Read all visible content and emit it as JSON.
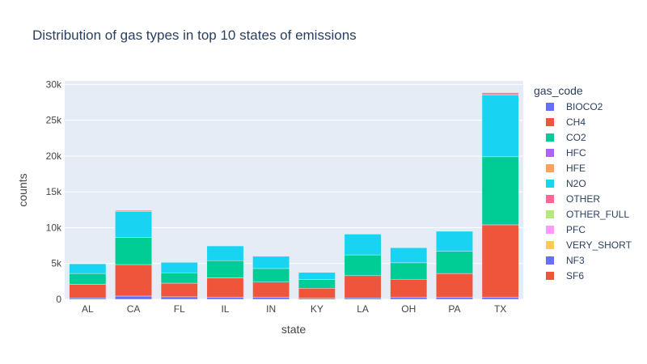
{
  "chart_data": {
    "type": "bar",
    "stacked": true,
    "title": "Distribution of gas types in top 10 states of emissions",
    "xlabel": "state",
    "ylabel": "counts",
    "ylim": [
      0,
      30500
    ],
    "yticks": [
      0,
      5000,
      10000,
      15000,
      20000,
      25000,
      30000
    ],
    "ytick_labels": [
      "0",
      "5k",
      "10k",
      "15k",
      "20k",
      "25k",
      "30k"
    ],
    "grid": true,
    "legend_title": "gas_code",
    "legend_position": "right",
    "categories": [
      "AL",
      "CA",
      "FL",
      "IL",
      "IN",
      "KY",
      "LA",
      "OH",
      "PA",
      "TX"
    ],
    "series": [
      {
        "name": "BIOCO2",
        "color": "#636efa",
        "values": [
          200,
          450,
          350,
          300,
          300,
          150,
          200,
          250,
          300,
          300
        ]
      },
      {
        "name": "CH4",
        "color": "#EF553B",
        "values": [
          1900,
          4400,
          1900,
          2700,
          2100,
          1400,
          3100,
          2550,
          3300,
          10100
        ]
      },
      {
        "name": "CO2",
        "color": "#00cc96",
        "values": [
          1500,
          3800,
          1450,
          2400,
          1900,
          1200,
          2900,
          2300,
          3100,
          9500
        ]
      },
      {
        "name": "HFC",
        "color": "#ab63fa",
        "values": [
          0,
          0,
          0,
          0,
          0,
          0,
          0,
          0,
          0,
          0
        ]
      },
      {
        "name": "HFE",
        "color": "#FFA15A",
        "values": [
          0,
          0,
          0,
          0,
          0,
          0,
          0,
          0,
          0,
          0
        ]
      },
      {
        "name": "N2O",
        "color": "#19d3f3",
        "values": [
          1350,
          3600,
          1450,
          2050,
          1700,
          1000,
          2900,
          2100,
          2800,
          8600
        ]
      },
      {
        "name": "OTHER",
        "color": "#FF6692",
        "values": [
          0,
          100,
          0,
          0,
          0,
          0,
          0,
          0,
          0,
          200
        ]
      },
      {
        "name": "OTHER_FULL",
        "color": "#B6E880",
        "values": [
          0,
          0,
          0,
          0,
          0,
          0,
          0,
          0,
          0,
          0
        ]
      },
      {
        "name": "PFC",
        "color": "#FF97FF",
        "values": [
          0,
          0,
          0,
          0,
          0,
          0,
          0,
          0,
          0,
          0
        ]
      },
      {
        "name": "VERY_SHORT",
        "color": "#FECB52",
        "values": [
          0,
          0,
          0,
          0,
          0,
          0,
          0,
          0,
          0,
          0
        ]
      },
      {
        "name": "NF3",
        "color": "#636efa",
        "values": [
          0,
          0,
          0,
          0,
          0,
          0,
          0,
          0,
          0,
          0
        ]
      },
      {
        "name": "SF6",
        "color": "#EF553B",
        "values": [
          0,
          100,
          0,
          0,
          0,
          0,
          0,
          0,
          0,
          150
        ]
      }
    ]
  }
}
